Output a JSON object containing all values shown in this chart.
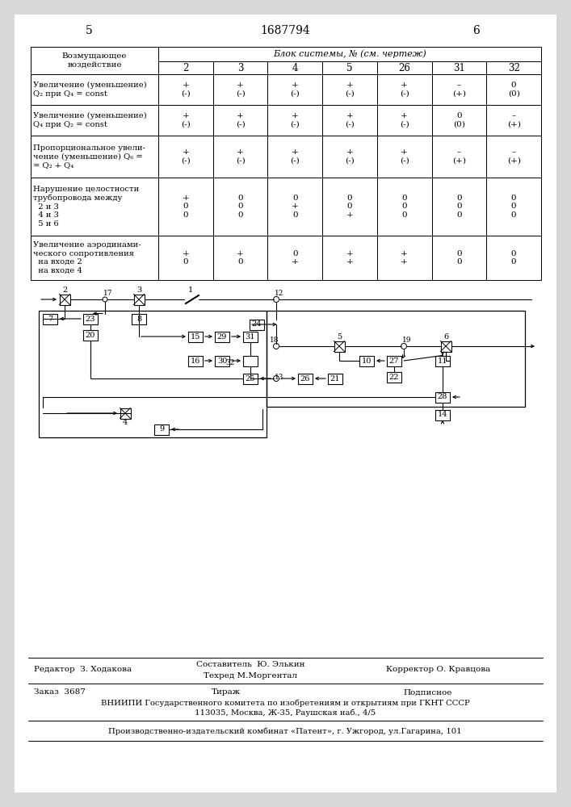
{
  "page_number_left": "5",
  "patent_number": "1687794",
  "page_number_right": "6",
  "bg_color": "#e8e8e8",
  "table": {
    "col_header_main": "Блок системы, № (см. чертеж)",
    "columns": [
      "2",
      "3",
      "4",
      "5",
      "26",
      "31",
      "32"
    ],
    "rows": [
      {
        "label": "Увеличение (уменьшение)\nQ₂ при Q₄ = const",
        "values": [
          "+\n(-)",
          "+\n(-)",
          "+\n(-)",
          "+\n(-)",
          "+\n(-)",
          "–\n(+)",
          "0\n(0)"
        ]
      },
      {
        "label": "Увеличение (уменьшение)\nQ₄ при Q₂ = const",
        "values": [
          "+\n(-)",
          "+\n(-)",
          "+\n(-)",
          "+\n(-)",
          "+\n(-)",
          "0\n(0)",
          "–\n(+)"
        ]
      },
      {
        "label": "Пропорциональное увели-\nчение (уменьшение) Q₆ =\n= Q₂ + Q₄",
        "values": [
          "+\n(-)",
          "+\n(-)",
          "+\n(-)",
          "+\n(-)",
          "+\n(-)",
          "–\n(+)",
          "–\n(+)"
        ]
      },
      {
        "label": "Нарушение целостности\nтрубопровода между\n  2 и 3\n  4 и 3\n  5 и 6",
        "values": [
          "+\n0\n0",
          "0\n0\n0",
          "0\n+\n0",
          "0\n0\n+",
          "0\n0\n0",
          "0\n0\n0",
          "0\n0\n0"
        ]
      },
      {
        "label": "Увеличение аэродинами-\nческого сопротивления\n  на входе 2\n  на входе 4",
        "values": [
          "+\n0",
          "+\n0",
          "0\n+",
          "+\n+",
          "+\n+",
          "0\n0",
          "0\n0"
        ]
      }
    ]
  },
  "footer": {
    "editor": "Редактор  З. Ходакова",
    "composer": "Составитель  Ю. Элькин",
    "techred": "Техред М.Моргентал",
    "corrector": "Корректор О. Кравцова",
    "order": "Заказ  3687",
    "tirazh": "Тираж",
    "podpisnoe": "Подписное",
    "vnipi": "ВНИИПИ Государственного комитета по изобретениям и открытиям при ГКНТ СССР",
    "address": "113035, Москва, Ж-35, Раушская наб., 4/5",
    "plant": "Производственно-издательский комбинат «Патент», г. Ужгород, ул.Гагарина, 101"
  }
}
